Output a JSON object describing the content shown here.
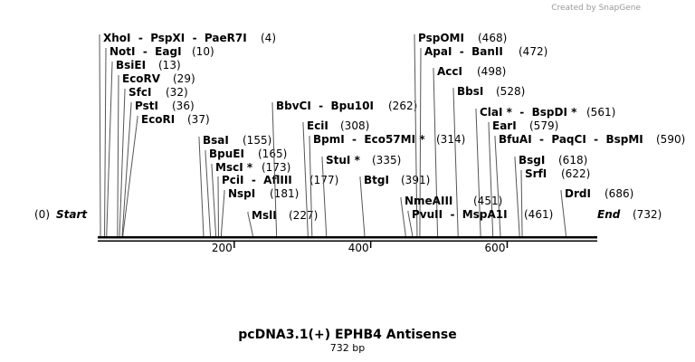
{
  "header": {
    "credit": "Created by SnapGene"
  },
  "map": {
    "title": "pcDNA3.1(+) EPHB4 Antisense",
    "length": "732 bp",
    "start": {
      "label": "Start",
      "position": {
        "value": 0,
        "label": "(0)"
      }
    },
    "end": {
      "label": "End",
      "position": {
        "value": 732,
        "label": "(732)"
      }
    },
    "ticks": [
      200,
      400,
      600
    ],
    "sites": [
      {
        "name": "XhoI  -  PspXI  -  PaeR7I",
        "position": {
          "value": 4,
          "label": "(4)"
        }
      },
      {
        "name": "NotI  -  EagI",
        "position": {
          "value": 10,
          "label": "(10)"
        }
      },
      {
        "name": "BsiEI",
        "position": {
          "value": 13,
          "label": "(13)"
        }
      },
      {
        "name": "EcoRV",
        "position": {
          "value": 29,
          "label": "(29)"
        }
      },
      {
        "name": "SfcI",
        "position": {
          "value": 32,
          "label": "(32)"
        }
      },
      {
        "name": "PstI",
        "position": {
          "value": 36,
          "label": "(36)"
        }
      },
      {
        "name": "EcoRI",
        "position": {
          "value": 37,
          "label": "(37)"
        }
      },
      {
        "name": "BsaI",
        "position": {
          "value": 155,
          "label": "(155)"
        }
      },
      {
        "name": "BpuEI",
        "position": {
          "value": 165,
          "label": "(165)"
        }
      },
      {
        "name": "MscI *",
        "position": {
          "value": 173,
          "label": "(173)"
        }
      },
      {
        "name": "PciI  -  AflIII",
        "position": {
          "value": 177,
          "label": "(177)"
        }
      },
      {
        "name": "NspI",
        "position": {
          "value": 181,
          "label": "(181)"
        }
      },
      {
        "name": "MslI",
        "position": {
          "value": 227,
          "label": "(227)"
        }
      },
      {
        "name": "BbvCI  -  Bpu10I",
        "position": {
          "value": 262,
          "label": "(262)"
        }
      },
      {
        "name": "EciI",
        "position": {
          "value": 308,
          "label": "(308)"
        }
      },
      {
        "name": "BpmI  -  Eco57MI *",
        "position": {
          "value": 314,
          "label": "(314)"
        }
      },
      {
        "name": "StuI *",
        "position": {
          "value": 335,
          "label": "(335)"
        }
      },
      {
        "name": "BtgI",
        "position": {
          "value": 391,
          "label": "(391)"
        }
      },
      {
        "name": "PspOMI",
        "position": {
          "value": 468,
          "label": "(468)"
        }
      },
      {
        "name": "ApaI  -  BanII",
        "position": {
          "value": 472,
          "label": "(472)"
        }
      },
      {
        "name": "AccI",
        "position": {
          "value": 498,
          "label": "(498)"
        }
      },
      {
        "name": "BbsI",
        "position": {
          "value": 528,
          "label": "(528)"
        }
      },
      {
        "name": "ClaI *  -  BspDI *",
        "position": {
          "value": 561,
          "label": "(561)"
        }
      },
      {
        "name": "EarI",
        "position": {
          "value": 579,
          "label": "(579)"
        }
      },
      {
        "name": "BfuAI  -  PaqCI  -  BspMI",
        "position": {
          "value": 590,
          "label": "(590)"
        }
      },
      {
        "name": "BsgI",
        "position": {
          "value": 618,
          "label": "(618)"
        }
      },
      {
        "name": "SrfI",
        "position": {
          "value": 622,
          "label": "(622)"
        }
      },
      {
        "name": "DrdI",
        "position": {
          "value": 686,
          "label": "(686)"
        }
      },
      {
        "name": "NmeAIII",
        "position": {
          "value": 451,
          "label": "(451)"
        }
      },
      {
        "name": "PvuII  -  MspA1I",
        "position": {
          "value": 461,
          "label": "(461)"
        }
      }
    ]
  }
}
